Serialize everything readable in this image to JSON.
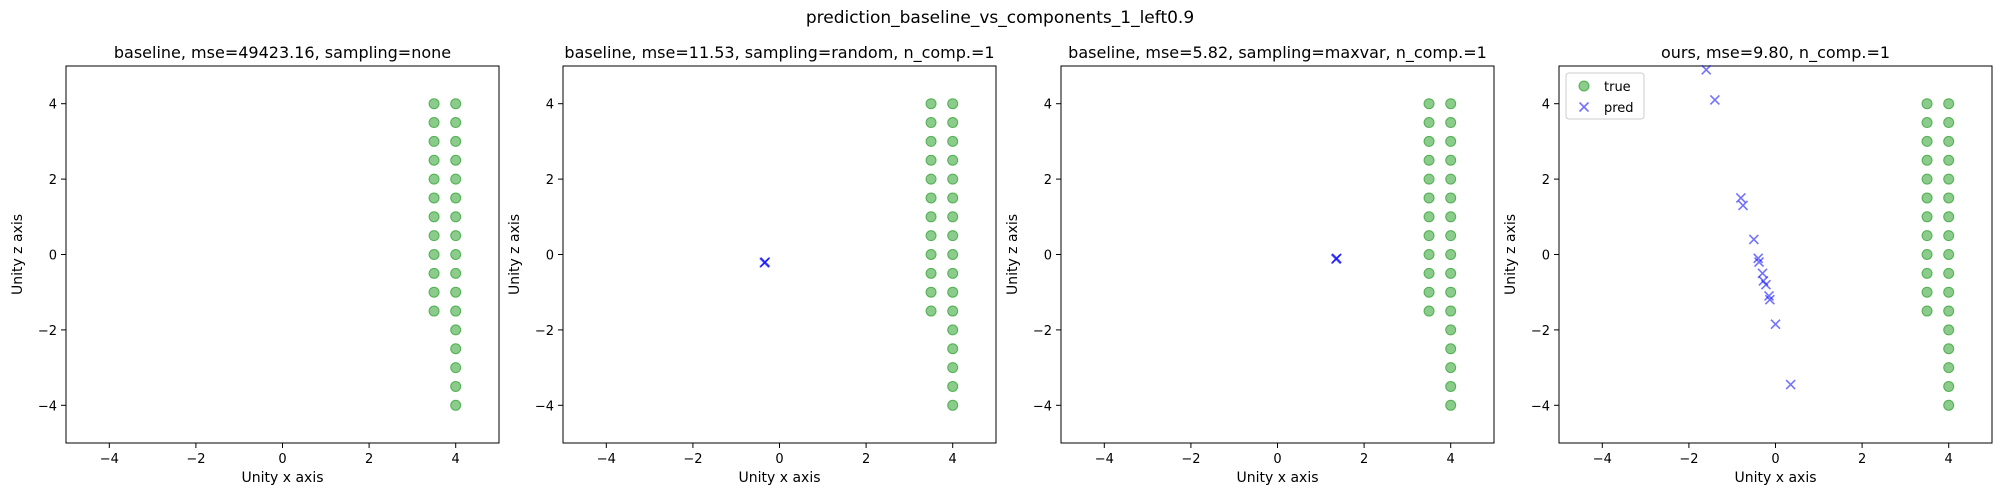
{
  "figure": {
    "suptitle": "prediction_baseline_vs_components_1_left0.9"
  },
  "chart_data": [
    {
      "type": "scatter",
      "title": "baseline, mse=49423.16, sampling=none",
      "xlabel": "Unity x axis",
      "ylabel": "Unity z axis",
      "xlim": [
        -5,
        5
      ],
      "ylim": [
        -5,
        5
      ],
      "xticks": [
        -4,
        -2,
        0,
        2,
        4
      ],
      "yticks": [
        -4,
        -2,
        0,
        2,
        4
      ],
      "grid": false,
      "legend": null,
      "series": [
        {
          "role": "true",
          "marker": "circle",
          "color": "#2ca02c",
          "points": [
            [
              3.5,
              4.0
            ],
            [
              3.5,
              3.5
            ],
            [
              3.5,
              3.0
            ],
            [
              3.5,
              2.5
            ],
            [
              3.5,
              2.0
            ],
            [
              3.5,
              1.5
            ],
            [
              3.5,
              1.0
            ],
            [
              3.5,
              0.5
            ],
            [
              3.5,
              0.0
            ],
            [
              3.5,
              -0.5
            ],
            [
              3.5,
              -1.0
            ],
            [
              3.5,
              -1.5
            ],
            [
              4.0,
              4.0
            ],
            [
              4.0,
              3.5
            ],
            [
              4.0,
              3.0
            ],
            [
              4.0,
              2.5
            ],
            [
              4.0,
              2.0
            ],
            [
              4.0,
              1.5
            ],
            [
              4.0,
              1.0
            ],
            [
              4.0,
              0.5
            ],
            [
              4.0,
              0.0
            ],
            [
              4.0,
              -0.5
            ],
            [
              4.0,
              -1.0
            ],
            [
              4.0,
              -1.5
            ],
            [
              4.0,
              -2.0
            ],
            [
              4.0,
              -2.5
            ],
            [
              4.0,
              -3.0
            ],
            [
              4.0,
              -3.5
            ],
            [
              4.0,
              -4.0
            ]
          ]
        }
      ]
    },
    {
      "type": "scatter",
      "title": "baseline, mse=11.53, sampling=random, n_comp.=1",
      "xlabel": "Unity x axis",
      "ylabel": "Unity z axis",
      "xlim": [
        -5,
        5
      ],
      "ylim": [
        -5,
        5
      ],
      "xticks": [
        -4,
        -2,
        0,
        2,
        4
      ],
      "yticks": [
        -4,
        -2,
        0,
        2,
        4
      ],
      "grid": false,
      "legend": null,
      "series": [
        {
          "role": "true",
          "marker": "circle",
          "color": "#2ca02c",
          "points": [
            [
              3.5,
              4.0
            ],
            [
              3.5,
              3.5
            ],
            [
              3.5,
              3.0
            ],
            [
              3.5,
              2.5
            ],
            [
              3.5,
              2.0
            ],
            [
              3.5,
              1.5
            ],
            [
              3.5,
              1.0
            ],
            [
              3.5,
              0.5
            ],
            [
              3.5,
              0.0
            ],
            [
              3.5,
              -0.5
            ],
            [
              3.5,
              -1.0
            ],
            [
              3.5,
              -1.5
            ],
            [
              4.0,
              4.0
            ],
            [
              4.0,
              3.5
            ],
            [
              4.0,
              3.0
            ],
            [
              4.0,
              2.5
            ],
            [
              4.0,
              2.0
            ],
            [
              4.0,
              1.5
            ],
            [
              4.0,
              1.0
            ],
            [
              4.0,
              0.5
            ],
            [
              4.0,
              0.0
            ],
            [
              4.0,
              -0.5
            ],
            [
              4.0,
              -1.0
            ],
            [
              4.0,
              -1.5
            ],
            [
              4.0,
              -2.0
            ],
            [
              4.0,
              -2.5
            ],
            [
              4.0,
              -3.0
            ],
            [
              4.0,
              -3.5
            ],
            [
              4.0,
              -4.0
            ]
          ]
        },
        {
          "role": "pred",
          "marker": "x",
          "color": "#0000ff",
          "points": [
            [
              -0.35,
              -0.22
            ],
            [
              -0.33,
              -0.2
            ],
            [
              -0.34,
              -0.21
            ]
          ]
        }
      ]
    },
    {
      "type": "scatter",
      "title": "baseline, mse=5.82, sampling=maxvar, n_comp.=1",
      "xlabel": "Unity x axis",
      "ylabel": "Unity z axis",
      "xlim": [
        -5,
        5
      ],
      "ylim": [
        -5,
        5
      ],
      "xticks": [
        -4,
        -2,
        0,
        2,
        4
      ],
      "yticks": [
        -4,
        -2,
        0,
        2,
        4
      ],
      "grid": false,
      "legend": null,
      "series": [
        {
          "role": "true",
          "marker": "circle",
          "color": "#2ca02c",
          "points": [
            [
              3.5,
              4.0
            ],
            [
              3.5,
              3.5
            ],
            [
              3.5,
              3.0
            ],
            [
              3.5,
              2.5
            ],
            [
              3.5,
              2.0
            ],
            [
              3.5,
              1.5
            ],
            [
              3.5,
              1.0
            ],
            [
              3.5,
              0.5
            ],
            [
              3.5,
              0.0
            ],
            [
              3.5,
              -0.5
            ],
            [
              3.5,
              -1.0
            ],
            [
              3.5,
              -1.5
            ],
            [
              4.0,
              4.0
            ],
            [
              4.0,
              3.5
            ],
            [
              4.0,
              3.0
            ],
            [
              4.0,
              2.5
            ],
            [
              4.0,
              2.0
            ],
            [
              4.0,
              1.5
            ],
            [
              4.0,
              1.0
            ],
            [
              4.0,
              0.5
            ],
            [
              4.0,
              0.0
            ],
            [
              4.0,
              -0.5
            ],
            [
              4.0,
              -1.0
            ],
            [
              4.0,
              -1.5
            ],
            [
              4.0,
              -2.0
            ],
            [
              4.0,
              -2.5
            ],
            [
              4.0,
              -3.0
            ],
            [
              4.0,
              -3.5
            ],
            [
              4.0,
              -4.0
            ]
          ]
        },
        {
          "role": "pred",
          "marker": "x",
          "color": "#0000ff",
          "points": [
            [
              1.35,
              -0.12
            ],
            [
              1.37,
              -0.1
            ],
            [
              1.36,
              -0.11
            ]
          ]
        }
      ]
    },
    {
      "type": "scatter",
      "title": "ours, mse=9.80, n_comp.=1",
      "xlabel": "Unity x axis",
      "ylabel": "Unity z axis",
      "xlim": [
        -5,
        5
      ],
      "ylim": [
        -5,
        5
      ],
      "xticks": [
        -4,
        -2,
        0,
        2,
        4
      ],
      "yticks": [
        -4,
        -2,
        0,
        2,
        4
      ],
      "grid": false,
      "legend": "upper left",
      "series": [
        {
          "name": "true",
          "role": "true",
          "marker": "circle",
          "color": "#2ca02c",
          "points": [
            [
              3.5,
              4.0
            ],
            [
              3.5,
              3.5
            ],
            [
              3.5,
              3.0
            ],
            [
              3.5,
              2.5
            ],
            [
              3.5,
              2.0
            ],
            [
              3.5,
              1.5
            ],
            [
              3.5,
              1.0
            ],
            [
              3.5,
              0.5
            ],
            [
              3.5,
              0.0
            ],
            [
              3.5,
              -0.5
            ],
            [
              3.5,
              -1.0
            ],
            [
              3.5,
              -1.5
            ],
            [
              4.0,
              4.0
            ],
            [
              4.0,
              3.5
            ],
            [
              4.0,
              3.0
            ],
            [
              4.0,
              2.5
            ],
            [
              4.0,
              2.0
            ],
            [
              4.0,
              1.5
            ],
            [
              4.0,
              1.0
            ],
            [
              4.0,
              0.5
            ],
            [
              4.0,
              0.0
            ],
            [
              4.0,
              -0.5
            ],
            [
              4.0,
              -1.0
            ],
            [
              4.0,
              -1.5
            ],
            [
              4.0,
              -2.0
            ],
            [
              4.0,
              -2.5
            ],
            [
              4.0,
              -3.0
            ],
            [
              4.0,
              -3.5
            ],
            [
              4.0,
              -4.0
            ]
          ]
        },
        {
          "name": "pred",
          "role": "pred",
          "marker": "x",
          "color": "#0000ff",
          "points": [
            [
              -1.6,
              4.9
            ],
            [
              -1.4,
              4.1
            ],
            [
              -0.8,
              1.5
            ],
            [
              -0.75,
              1.3
            ],
            [
              -0.5,
              0.4
            ],
            [
              -0.4,
              -0.1
            ],
            [
              -0.38,
              -0.2
            ],
            [
              -0.3,
              -0.5
            ],
            [
              -0.28,
              -0.7
            ],
            [
              -0.22,
              -0.8
            ],
            [
              -0.15,
              -1.1
            ],
            [
              -0.13,
              -1.2
            ],
            [
              0.0,
              -1.85
            ],
            [
              0.35,
              -3.45
            ]
          ]
        }
      ]
    }
  ]
}
